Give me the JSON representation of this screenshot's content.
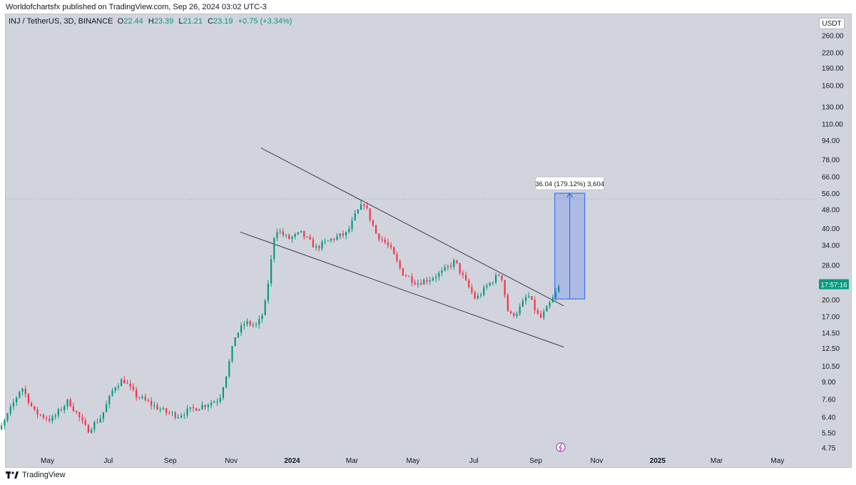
{
  "header": {
    "text": "Worldofchartsfx published on TradingView.com, Sep 26, 2024 03:02 UTC-3"
  },
  "legend": {
    "symbol": "INJ / TetherUS, 3D, BINANCE",
    "open_label": "O",
    "open": "22.44",
    "high_label": "H",
    "high": "23.39",
    "low_label": "L",
    "low": "21.21",
    "close_label": "C",
    "close": "23.19",
    "change": "+0.75 (+3.34%)"
  },
  "currency": "USDT",
  "footer": {
    "brand": "TradingView"
  },
  "colors": {
    "up": "#089981",
    "down": "#f23645",
    "measure": "#2962ff",
    "background": "#d1d4dc",
    "trendline": "#3a3d46"
  },
  "chart_data": {
    "type": "candlestick",
    "title": "",
    "y_scale": "log",
    "y_ticks": [
      "260.00",
      "220.00",
      "190.00",
      "160.00",
      "130.00",
      "110.00",
      "94.00",
      "78.00",
      "66.00",
      "56.00",
      "48.00",
      "40.00",
      "34.00",
      "28.00",
      "24.00",
      "20.00",
      "17.00",
      "14.50",
      "12.50",
      "10.50",
      "9.00",
      "7.60",
      "6.40",
      "5.50",
      "4.75"
    ],
    "x_ticks": [
      "May",
      "Jul",
      "Sep",
      "Nov",
      "2024",
      "Mar",
      "May",
      "Jul",
      "Sep",
      "Nov",
      "2025",
      "Mar",
      "May"
    ],
    "last_price_countdown": "17:57:16",
    "measurement": {
      "label": "36.04 (179.12%) 3,604",
      "from_price": 20.1,
      "to_price": 56.1,
      "from_date": "2024-09-20",
      "to_date": "2024-10-20"
    },
    "trendlines": [
      {
        "name": "upper",
        "start": {
          "date": "2023-12-01",
          "price": 87
        },
        "end": {
          "date": "2024-09-29",
          "price": 18.8
        }
      },
      {
        "name": "lower",
        "start": {
          "date": "2023-11-10",
          "price": 38.5
        },
        "end": {
          "date": "2024-09-29",
          "price": 12.6
        }
      }
    ],
    "price_path": [
      [
        "2023-03-01",
        4.6
      ],
      [
        "2023-03-18",
        6.0
      ],
      [
        "2023-04-05",
        8.6
      ],
      [
        "2023-04-18",
        6.7
      ],
      [
        "2023-05-05",
        6.2
      ],
      [
        "2023-05-22",
        7.5
      ],
      [
        "2023-06-10",
        5.6
      ],
      [
        "2023-06-24",
        6.4
      ],
      [
        "2023-07-07",
        8.6
      ],
      [
        "2023-07-16",
        9.2
      ],
      [
        "2023-07-28",
        7.9
      ],
      [
        "2023-08-14",
        7.2
      ],
      [
        "2023-08-27",
        6.7
      ],
      [
        "2023-09-09",
        6.5
      ],
      [
        "2023-09-23",
        6.9
      ],
      [
        "2023-10-06",
        7.2
      ],
      [
        "2023-10-20",
        7.6
      ],
      [
        "2023-10-28",
        10.0
      ],
      [
        "2023-11-05",
        14.0
      ],
      [
        "2023-11-15",
        16.0
      ],
      [
        "2023-11-27",
        15.5
      ],
      [
        "2023-12-04",
        18.0
      ],
      [
        "2023-12-10",
        27.0
      ],
      [
        "2023-12-15",
        40.0
      ],
      [
        "2023-12-28",
        36.0
      ],
      [
        "2024-01-10",
        38.0
      ],
      [
        "2024-01-25",
        33.0
      ],
      [
        "2024-02-10",
        36.0
      ],
      [
        "2024-02-25",
        38.0
      ],
      [
        "2024-03-05",
        46.0
      ],
      [
        "2024-03-13",
        51.0
      ],
      [
        "2024-03-25",
        38.0
      ],
      [
        "2024-04-08",
        33.0
      ],
      [
        "2024-04-20",
        26.0
      ],
      [
        "2024-05-05",
        23.5
      ],
      [
        "2024-05-18",
        24.5
      ],
      [
        "2024-05-30",
        26.0
      ],
      [
        "2024-06-12",
        29.0
      ],
      [
        "2024-06-22",
        24.0
      ],
      [
        "2024-07-03",
        20.0
      ],
      [
        "2024-07-15",
        23.0
      ],
      [
        "2024-07-28",
        26.0
      ],
      [
        "2024-08-05",
        17.0
      ],
      [
        "2024-08-14",
        17.8
      ],
      [
        "2024-08-24",
        21.0
      ],
      [
        "2024-09-05",
        16.5
      ],
      [
        "2024-09-13",
        18.5
      ],
      [
        "2024-09-26",
        23.19
      ]
    ]
  }
}
